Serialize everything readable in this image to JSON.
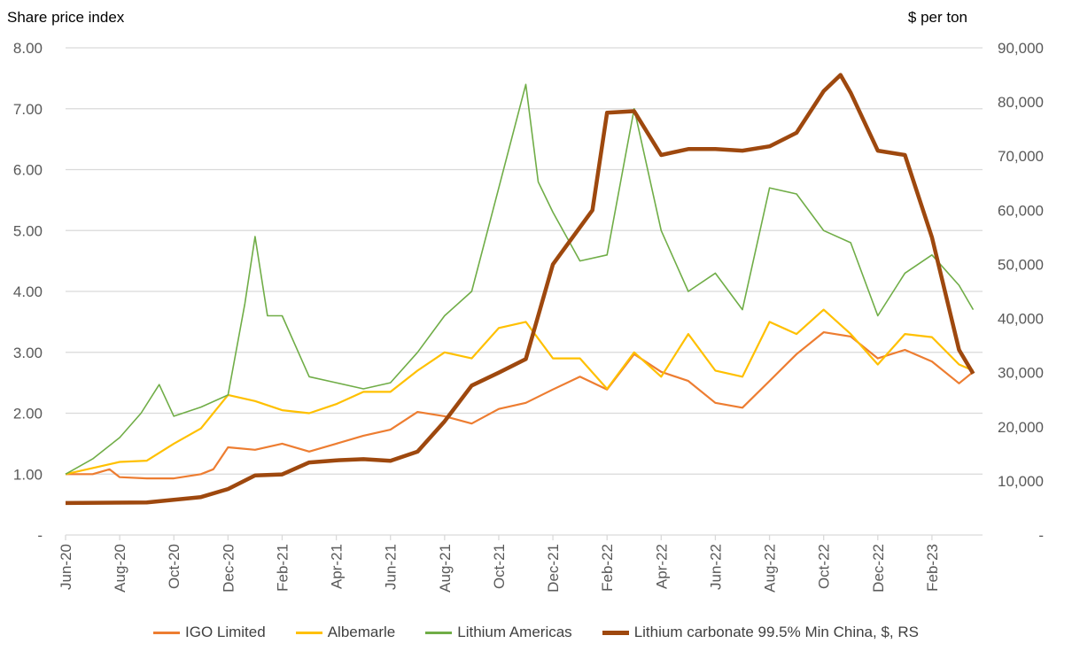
{
  "chart_data": {
    "type": "line",
    "left_axis": {
      "label": "Share price index",
      "ylim": [
        0,
        8
      ],
      "ticks": [
        "-",
        "1.00",
        "2.00",
        "3.00",
        "4.00",
        "5.00",
        "6.00",
        "7.00",
        "8.00"
      ]
    },
    "right_axis": {
      "label": "$ per ton",
      "ylim": [
        0,
        90000
      ],
      "ticks": [
        "-",
        "10,000",
        "20,000",
        "30,000",
        "40,000",
        "50,000",
        "60,000",
        "70,000",
        "80,000",
        "90,000"
      ]
    },
    "x_ticks": [
      "Jun-20",
      "Aug-20",
      "Oct-20",
      "Dec-20",
      "Feb-21",
      "Apr-21",
      "Jun-21",
      "Aug-21",
      "Oct-21",
      "Dec-21",
      "Feb-22",
      "Apr-22",
      "Jun-22",
      "Aug-22",
      "Oct-22",
      "Dec-22",
      "Feb-23"
    ],
    "x_tick_dates": [
      "2020-06-01",
      "2020-08-01",
      "2020-10-01",
      "2020-12-01",
      "2021-02-01",
      "2021-04-01",
      "2021-06-01",
      "2021-08-01",
      "2021-10-01",
      "2021-12-01",
      "2022-02-01",
      "2022-04-01",
      "2022-06-01",
      "2022-08-01",
      "2022-10-01",
      "2022-12-01",
      "2023-02-01"
    ],
    "grid": true,
    "legend_position": "bottom",
    "series": [
      {
        "name": "IGO Limited",
        "axis": "left",
        "color": "#ED7D31",
        "x": [
          "2020-06-01",
          "2020-07-01",
          "2020-07-20",
          "2020-08-01",
          "2020-09-01",
          "2020-10-01",
          "2020-11-01",
          "2020-11-15",
          "2020-12-01",
          "2021-01-01",
          "2021-02-01",
          "2021-03-01",
          "2021-04-01",
          "2021-05-01",
          "2021-06-01",
          "2021-07-01",
          "2021-08-01",
          "2021-09-01",
          "2021-10-01",
          "2021-11-01",
          "2021-12-01",
          "2022-01-01",
          "2022-02-01",
          "2022-03-01",
          "2022-04-01",
          "2022-05-01",
          "2022-06-01",
          "2022-07-01",
          "2022-08-01",
          "2022-09-01",
          "2022-10-01",
          "2022-11-01",
          "2022-12-01",
          "2023-01-01",
          "2023-02-01",
          "2023-03-01",
          "2023-03-17"
        ],
        "y": [
          1.0,
          1.0,
          1.08,
          0.95,
          0.93,
          0.93,
          1.0,
          1.08,
          1.44,
          1.4,
          1.5,
          1.37,
          1.5,
          1.63,
          1.73,
          2.02,
          1.95,
          1.83,
          2.07,
          2.17,
          2.39,
          2.6,
          2.39,
          2.97,
          2.68,
          2.53,
          2.17,
          2.09,
          2.53,
          2.97,
          3.33,
          3.26,
          2.9,
          3.04,
          2.85,
          2.49,
          2.68
        ]
      },
      {
        "name": "Albemarle",
        "axis": "left",
        "color": "#FFC000",
        "x": [
          "2020-06-01",
          "2020-07-01",
          "2020-08-01",
          "2020-09-01",
          "2020-10-01",
          "2020-11-01",
          "2020-12-01",
          "2021-01-01",
          "2021-02-01",
          "2021-03-01",
          "2021-04-01",
          "2021-05-01",
          "2021-06-01",
          "2021-07-01",
          "2021-08-01",
          "2021-09-01",
          "2021-10-01",
          "2021-11-01",
          "2021-12-01",
          "2022-01-01",
          "2022-02-01",
          "2022-03-01",
          "2022-04-01",
          "2022-05-01",
          "2022-06-01",
          "2022-07-01",
          "2022-08-01",
          "2022-09-01",
          "2022-10-01",
          "2022-11-01",
          "2022-12-01",
          "2023-01-01",
          "2023-02-01",
          "2023-03-01",
          "2023-03-17"
        ],
        "y": [
          1.0,
          1.1,
          1.2,
          1.22,
          1.5,
          1.75,
          2.3,
          2.2,
          2.05,
          2.0,
          2.15,
          2.35,
          2.35,
          2.7,
          3.0,
          2.9,
          3.4,
          3.5,
          2.9,
          2.9,
          2.4,
          3.0,
          2.6,
          3.3,
          2.7,
          2.6,
          3.5,
          3.3,
          3.7,
          3.3,
          2.8,
          3.3,
          3.25,
          2.8,
          2.7
        ]
      },
      {
        "name": "Lithium Americas",
        "axis": "left",
        "color": "#70AD47",
        "x": [
          "2020-06-01",
          "2020-07-01",
          "2020-08-01",
          "2020-08-25",
          "2020-09-15",
          "2020-10-01",
          "2020-11-01",
          "2020-12-01",
          "2020-12-20",
          "2021-01-01",
          "2021-01-15",
          "2021-02-01",
          "2021-03-01",
          "2021-04-01",
          "2021-05-01",
          "2021-06-01",
          "2021-07-01",
          "2021-08-01",
          "2021-09-01",
          "2021-10-01",
          "2021-11-01",
          "2021-11-15",
          "2021-12-01",
          "2022-01-01",
          "2022-02-01",
          "2022-03-01",
          "2022-04-01",
          "2022-05-01",
          "2022-06-01",
          "2022-07-01",
          "2022-08-01",
          "2022-09-01",
          "2022-10-01",
          "2022-11-01",
          "2022-12-01",
          "2023-01-01",
          "2023-02-01",
          "2023-03-01",
          "2023-03-17"
        ],
        "y": [
          1.0,
          1.25,
          1.6,
          2.0,
          2.47,
          1.95,
          2.1,
          2.3,
          3.8,
          4.9,
          3.6,
          3.6,
          2.6,
          2.5,
          2.4,
          2.5,
          3.0,
          3.6,
          4.0,
          5.7,
          7.4,
          5.8,
          5.3,
          4.5,
          4.6,
          7.0,
          5.0,
          4.0,
          4.3,
          3.7,
          5.7,
          5.6,
          5.0,
          4.8,
          3.6,
          4.3,
          4.6,
          4.1,
          3.7
        ]
      },
      {
        "name": "Lithium carbonate 99.5% Min China, $, RS",
        "axis": "right",
        "color": "#9E480E",
        "x": [
          "2020-06-01",
          "2020-09-01",
          "2020-10-01",
          "2020-11-01",
          "2020-12-01",
          "2021-01-01",
          "2021-02-01",
          "2021-03-01",
          "2021-04-01",
          "2021-05-01",
          "2021-06-01",
          "2021-07-01",
          "2021-08-01",
          "2021-09-01",
          "2021-10-01",
          "2021-11-01",
          "2021-12-01",
          "2022-01-15",
          "2022-02-01",
          "2022-03-01",
          "2022-04-01",
          "2022-05-01",
          "2022-06-01",
          "2022-07-01",
          "2022-08-01",
          "2022-09-01",
          "2022-10-01",
          "2022-10-20",
          "2022-11-01",
          "2022-12-01",
          "2023-01-01",
          "2023-02-01",
          "2023-03-01",
          "2023-03-17"
        ],
        "y": [
          5900,
          6000,
          6500,
          7000,
          8500,
          11000,
          11200,
          13400,
          13800,
          14000,
          13700,
          15400,
          21000,
          27600,
          30000,
          32500,
          50000,
          60000,
          78000,
          78300,
          70200,
          71300,
          71300,
          71000,
          71800,
          74300,
          82000,
          85000,
          81700,
          71000,
          70200,
          55000,
          34200,
          29800
        ]
      }
    ]
  }
}
